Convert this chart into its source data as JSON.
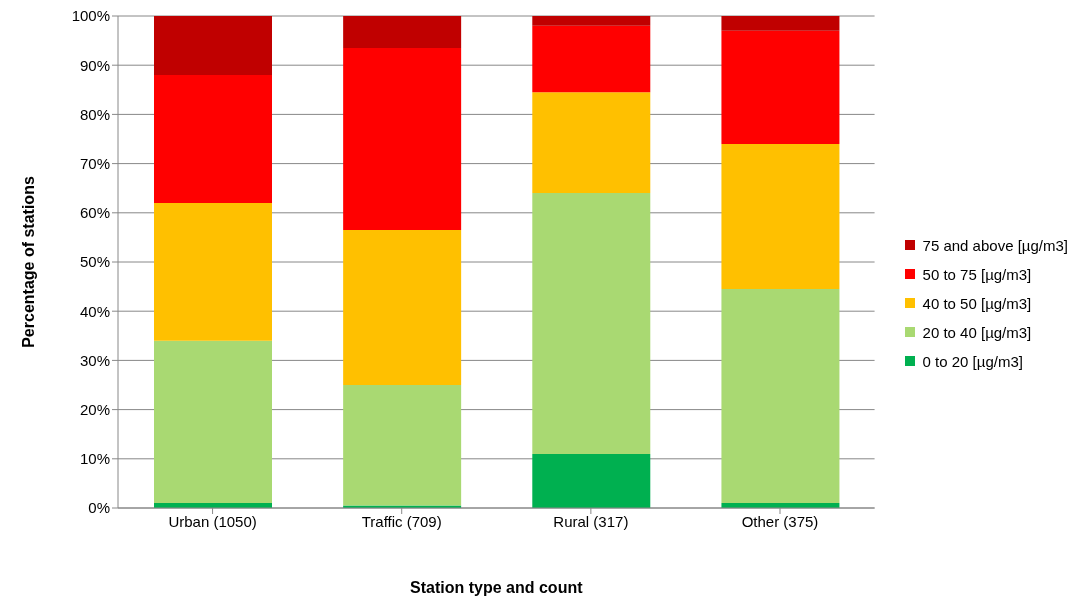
{
  "chart_data": {
    "type": "bar",
    "stacked": true,
    "xlabel": "Station type and count",
    "ylabel": "Percentage of stations",
    "categories": [
      "Urban (1050)",
      "Traffic (709)",
      "Rural (317)",
      "Other (375)"
    ],
    "series": [
      {
        "name": "0 to 20 [µg/m3]",
        "color": "#00b050",
        "values": [
          1,
          0.5,
          11,
          1
        ]
      },
      {
        "name": "20 to 40 [µg/m3]",
        "color": "#a9d972",
        "values": [
          33,
          24.5,
          53,
          43.5
        ]
      },
      {
        "name": "40 to 50 [µg/m3]",
        "color": "#ffc000",
        "values": [
          28,
          31.5,
          20.5,
          29.5
        ]
      },
      {
        "name": "50 to 75 [µg/m3]",
        "color": "#ff0000",
        "values": [
          26,
          37,
          13.5,
          23
        ]
      },
      {
        "name": "75 and above [µg/m3]",
        "color": "#c00000",
        "values": [
          12,
          6.5,
          2,
          3
        ]
      }
    ],
    "ylim": [
      0,
      100
    ],
    "yticks": [
      {
        "value": 0,
        "label": "0%"
      },
      {
        "value": 10,
        "label": "10%"
      },
      {
        "value": 20,
        "label": "20%"
      },
      {
        "value": 30,
        "label": "30%"
      },
      {
        "value": 40,
        "label": "40%"
      },
      {
        "value": 50,
        "label": "50%"
      },
      {
        "value": 60,
        "label": "60%"
      },
      {
        "value": 70,
        "label": "70%"
      },
      {
        "value": 80,
        "label": "80%"
      },
      {
        "value": 90,
        "label": "90%"
      },
      {
        "value": 100,
        "label": "100%"
      }
    ],
    "grid": "y",
    "legend": "right"
  }
}
